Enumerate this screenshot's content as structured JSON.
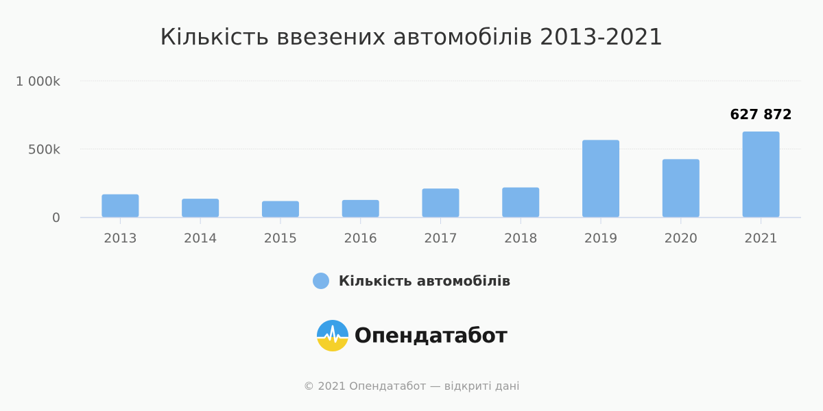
{
  "chart_data": {
    "type": "bar",
    "title": "Кількість ввезених автомобілів 2013-2021",
    "categories": [
      "2013",
      "2014",
      "2015",
      "2016",
      "2017",
      "2018",
      "2019",
      "2020",
      "2021"
    ],
    "series": [
      {
        "name": "Кількість автомобілів",
        "values": [
          168000,
          135000,
          118000,
          126000,
          210000,
          218000,
          566000,
          425000,
          627872
        ],
        "color": "#7cb5ec"
      }
    ],
    "ylim": [
      0,
      1000000
    ],
    "yticks": [
      {
        "value": 0,
        "label": "0"
      },
      {
        "value": 500000,
        "label": "500k"
      },
      {
        "value": 1000000,
        "label": "1 000k"
      }
    ],
    "data_labels": [
      {
        "category": "2021",
        "text": "627 872"
      }
    ],
    "grid": true,
    "legend_position": "bottom"
  },
  "branding": {
    "logo_text": "Опендатабот",
    "copyright": "© 2021 Опендатабот — відкриті дані"
  },
  "colors": {
    "bar": "#7cb5ec",
    "grid": "#e6e6e6",
    "axis": "#ccd6eb",
    "tick_text": "#666666",
    "logo_blue": "#3aa0e8",
    "logo_yellow": "#f5d02a"
  }
}
